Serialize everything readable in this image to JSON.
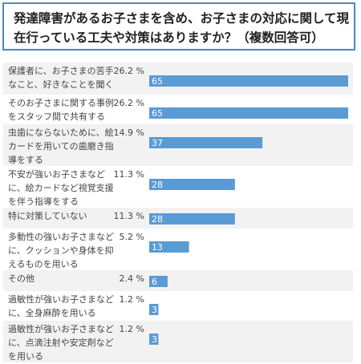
{
  "title": "発達障害があるお子さまを含め、お子さまの対応に関して現在行っている工夫や対策はありますか？（複数回答可）",
  "chart_data": {
    "type": "bar",
    "orientation": "horizontal",
    "title": "発達障害があるお子さまを含め、お子さまの対応に関して現在行っている工夫や対策はありますか？（複数回答可）",
    "xlim": [
      0,
      65
    ],
    "grid": false,
    "bar_color": "#5a9bd5",
    "categories": [
      [
        "保護者に、お子さまの苦手",
        "なこと、好きなことを聞く"
      ],
      [
        "そのお子さまに関する事例",
        "をスタッフ間で共有する"
      ],
      [
        "虫歯にならないために、絵",
        "カードを用いての歯磨き指",
        "導をする"
      ],
      [
        "不安が強いお子さまなど",
        "に、絵カードなど視覚支援",
        "を伴う指導をする"
      ],
      [
        "特に対策していない"
      ],
      [
        "多動性の強いお子さまなど",
        "に、クッションや身体を抑",
        "えるものを用いる"
      ],
      [
        "その他"
      ],
      [
        "過敏性が強いお子さまなど",
        "に、全身麻酔を用いる"
      ],
      [
        "過敏性が強いお子さまなど",
        "に、点滴注射や安定剤など",
        "を用いる"
      ]
    ],
    "values": [
      65,
      65,
      37,
      28,
      28,
      13,
      6,
      3,
      3
    ],
    "percents": [
      "26.2 %",
      "26.2 %",
      "14.9 %",
      "11.3 %",
      "11.3 %",
      "5.2 %",
      "2.4 %",
      "1.2 %",
      "1.2 %"
    ]
  }
}
